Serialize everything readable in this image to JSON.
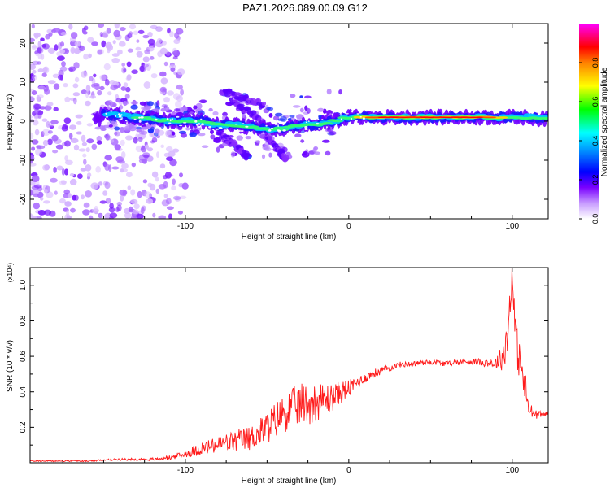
{
  "title": "PAZ1.2026.089.00.09.G12",
  "chart_data": [
    {
      "type": "heatmap",
      "xlabel": "Height of straight line (km)",
      "ylabel": "Frequency (Hz)",
      "xlim": [
        -195,
        122
      ],
      "ylim": [
        -25,
        25
      ],
      "xticks": [
        -100,
        0,
        100
      ],
      "yticks": [
        -20,
        -10,
        0,
        10,
        20
      ],
      "ridge": [
        {
          "x": -152,
          "y": 2
        },
        {
          "x": -140,
          "y": 1.5
        },
        {
          "x": -130,
          "y": 1
        },
        {
          "x": -120,
          "y": 0.5
        },
        {
          "x": -110,
          "y": 0
        },
        {
          "x": -100,
          "y": 0
        },
        {
          "x": -90,
          "y": 0
        },
        {
          "x": -80,
          "y": -1
        },
        {
          "x": -70,
          "y": -1
        },
        {
          "x": -60,
          "y": -1.5
        },
        {
          "x": -50,
          "y": -2
        },
        {
          "x": -40,
          "y": -2
        },
        {
          "x": -30,
          "y": -1
        },
        {
          "x": -20,
          "y": -1
        },
        {
          "x": -10,
          "y": 0
        },
        {
          "x": 0,
          "y": 1
        },
        {
          "x": 10,
          "y": 1
        },
        {
          "x": 20,
          "y": 1
        },
        {
          "x": 30,
          "y": 1
        },
        {
          "x": 40,
          "y": 1
        },
        {
          "x": 50,
          "y": 1
        },
        {
          "x": 60,
          "y": 1
        },
        {
          "x": 70,
          "y": 1
        },
        {
          "x": 80,
          "y": 1
        },
        {
          "x": 90,
          "y": 1
        },
        {
          "x": 100,
          "y": 1
        },
        {
          "x": 110,
          "y": 1
        },
        {
          "x": 120,
          "y": 0.5
        }
      ],
      "branches": [
        {
          "x": [
            -78,
            -65,
            -52
          ],
          "y": [
            8,
            6,
            4
          ]
        },
        {
          "x": [
            -72,
            -60,
            -48
          ],
          "y": [
            5,
            2,
            -2
          ]
        },
        {
          "x": [
            -80,
            -70,
            -62
          ],
          "y": [
            -3,
            -6,
            -9
          ]
        },
        {
          "x": [
            -50,
            -44,
            -38
          ],
          "y": [
            -4,
            -7,
            -10
          ]
        }
      ],
      "colorbar": {
        "label": "Normalized spectral amplitude",
        "range": [
          0,
          1
        ],
        "ticks": [
          0.0,
          0.2,
          0.4,
          0.6,
          0.8
        ],
        "tick_labels": [
          "0.0",
          "0.2",
          "0.4",
          "0.6",
          "0.8"
        ],
        "colors": [
          "#ffffff",
          "#a000ff",
          "#0000ff",
          "#00ffff",
          "#00ff00",
          "#ffff00",
          "#ff0000",
          "#ff00ff"
        ]
      }
    },
    {
      "type": "line",
      "xlabel": "Height of straight line (km)",
      "ylabel": "SNR (10 * v/v)",
      "multiplier": "(x10⁴)",
      "xlim": [
        -195,
        122
      ],
      "ylim": [
        0.0,
        1.1
      ],
      "xticks": [
        -100,
        0,
        100
      ],
      "yticks": [
        0.2,
        0.4,
        0.6,
        0.8,
        1.0
      ],
      "color": "#ff1a1a",
      "series": [
        {
          "name": "SNR",
          "x": [
            -195,
            -180,
            -160,
            -140,
            -120,
            -110,
            -100,
            -90,
            -80,
            -70,
            -60,
            -50,
            -40,
            -30,
            -20,
            -10,
            0,
            10,
            20,
            30,
            40,
            50,
            60,
            70,
            80,
            90,
            94,
            97,
            100,
            102,
            105,
            108,
            110,
            113,
            116,
            122
          ],
          "y": [
            0.01,
            0.01,
            0.01,
            0.02,
            0.02,
            0.03,
            0.05,
            0.08,
            0.1,
            0.12,
            0.14,
            0.2,
            0.28,
            0.33,
            0.34,
            0.37,
            0.42,
            0.48,
            0.52,
            0.55,
            0.56,
            0.57,
            0.56,
            0.57,
            0.57,
            0.56,
            0.6,
            0.7,
            1.09,
            0.7,
            0.55,
            0.42,
            0.3,
            0.28,
            0.27,
            0.28
          ],
          "noise": [
            0,
            0,
            0,
            0.004,
            0.006,
            0.01,
            0.02,
            0.04,
            0.05,
            0.06,
            0.07,
            0.09,
            0.11,
            0.12,
            0.11,
            0.08,
            0.05,
            0.03,
            0.02,
            0.015,
            0.015,
            0.015,
            0.015,
            0.015,
            0.02,
            0.03,
            0.08,
            0.12,
            0.1,
            0.12,
            0.12,
            0.1,
            0.05,
            0.03,
            0.02,
            0.01
          ]
        }
      ]
    }
  ]
}
